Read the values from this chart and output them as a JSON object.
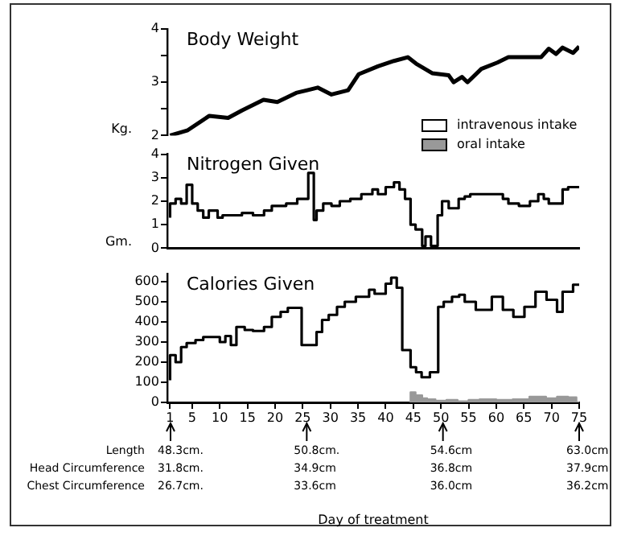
{
  "chart_data": [
    {
      "type": "line",
      "title": "Body Weight",
      "ylabel": "Kg.",
      "tick_labels": "y",
      "color": "#000000",
      "x": [
        1,
        4.2,
        8.1,
        11.5,
        14,
        17.9,
        20.4,
        23.8,
        25.8,
        27.7,
        30.2,
        33.2,
        35.1,
        38.6,
        41.5,
        44,
        45.5,
        48.4,
        51.4,
        52.3,
        53.8,
        54.8,
        57.3,
        60.2,
        62.2,
        68.1,
        69.5,
        70.8,
        72,
        73.9,
        75
      ],
      "values": [
        2.0,
        2.1,
        2.37,
        2.33,
        2.47,
        2.67,
        2.63,
        2.8,
        2.85,
        2.9,
        2.77,
        2.85,
        3.15,
        3.3,
        3.4,
        3.47,
        3.35,
        3.17,
        3.13,
        3.0,
        3.1,
        3.0,
        3.25,
        3.37,
        3.47,
        3.47,
        3.63,
        3.53,
        3.65,
        3.55,
        3.67
      ],
      "xlim": [
        0.5,
        75
      ],
      "ylim": [
        2,
        4
      ],
      "yticks": [
        2,
        {
          "value": 2.5,
          "label": null
        },
        3,
        {
          "value": 3.5,
          "label": null
        },
        4
      ]
    },
    {
      "type": "step",
      "title": "Nitrogen Given",
      "ylabel": "Gm.",
      "tick_labels": "y",
      "color": "#000000",
      "x": [
        1,
        2,
        3,
        4,
        5,
        6,
        7,
        8,
        9.6,
        10.5,
        12,
        14,
        16,
        18,
        19.4,
        22,
        24,
        26,
        27,
        27.5,
        28.7,
        30.2,
        31.7,
        33.6,
        35.6,
        37.6,
        38.6,
        40,
        41.5,
        42.5,
        43.5,
        44.5,
        45.4,
        46.6,
        47.2,
        48.2,
        49.4,
        50.2,
        51.4,
        53.2,
        54.3,
        55.3,
        61.2,
        62.2,
        64.1,
        66.1,
        67.6,
        68.6,
        69.5,
        72,
        73,
        74.2,
        75
      ],
      "values": [
        1.3,
        1.9,
        2.1,
        1.9,
        2.7,
        1.9,
        1.6,
        1.3,
        1.6,
        1.3,
        1.4,
        1.4,
        1.5,
        1.4,
        1.6,
        1.8,
        1.9,
        2.1,
        3.2,
        1.2,
        1.6,
        1.9,
        1.8,
        2.0,
        2.1,
        2.3,
        2.5,
        2.3,
        2.6,
        2.8,
        2.5,
        2.1,
        1.0,
        0.8,
        0.1,
        0.5,
        0.1,
        1.4,
        2.0,
        1.7,
        2.1,
        2.2,
        2.3,
        2.1,
        1.9,
        1.8,
        2.0,
        2.3,
        2.1,
        1.9,
        2.5,
        2.6,
        2.6
      ],
      "xlim": [
        0.5,
        75
      ],
      "ylim": [
        0,
        4
      ],
      "yticks": [
        0,
        1,
        2,
        3,
        4
      ]
    },
    {
      "type": "step",
      "title": "Calories Given",
      "xlabel": "Day of treatment",
      "legend": "top right",
      "series": [
        {
          "name": "intravenous intake",
          "color": "#000000",
          "x": [
            1,
            2,
            3,
            4,
            5.6,
            7,
            10,
            11,
            12,
            13,
            14.5,
            16,
            18,
            19.4,
            21,
            22.3,
            24.8,
            27.5,
            28.5,
            29.7,
            31.2,
            32.6,
            34.6,
            36,
            37,
            38,
            40,
            41,
            42,
            43,
            44.5,
            45.5,
            46.5,
            48,
            49.5,
            50.5,
            52,
            53.3,
            54.3,
            56.3,
            59.2,
            61.2,
            63.1,
            65.1,
            67.1,
            69.1,
            71,
            72,
            73.9,
            74.5,
            75
          ],
          "values": [
            110,
            235,
            200,
            275,
            295,
            310,
            325,
            300,
            330,
            285,
            375,
            360,
            355,
            375,
            425,
            450,
            470,
            285,
            350,
            410,
            435,
            475,
            500,
            525,
            525,
            560,
            540,
            590,
            620,
            570,
            260,
            175,
            150,
            125,
            150,
            475,
            500,
            525,
            535,
            500,
            460,
            525,
            460,
            425,
            475,
            550,
            510,
            450,
            550,
            585,
            585
          ]
        },
        {
          "name": "oral intake",
          "type": "area",
          "color": "#999999",
          "x": [
            44.5,
            45.4,
            46.6,
            47.5,
            49,
            51,
            53,
            55,
            57,
            60,
            63,
            66,
            69,
            71,
            73,
            74.5,
            75
          ],
          "values": [
            0,
            50,
            35,
            20,
            15,
            8,
            12,
            5,
            12,
            15,
            12,
            15,
            28,
            20,
            28,
            25,
            0
          ]
        }
      ],
      "xlim": [
        0.5,
        75
      ],
      "ylim": [
        0,
        640
      ],
      "xticks": [
        1,
        5,
        10,
        15,
        20,
        25,
        30,
        35,
        40,
        45,
        50,
        55,
        60,
        65,
        70,
        75
      ],
      "yticks": [
        0,
        100,
        200,
        300,
        400,
        500,
        600
      ],
      "annotations": [
        "Length",
        "48.3cm.",
        "50.8cm.",
        "54.6cm",
        "63.0cm",
        "Head Circumference",
        "31.8cm.",
        "34.9cm",
        "36.8cm",
        "37.9cm",
        "Chest Circumference",
        "26.7cm.",
        "33.6cm",
        "36.0cm",
        "36.2cm"
      ]
    }
  ]
}
